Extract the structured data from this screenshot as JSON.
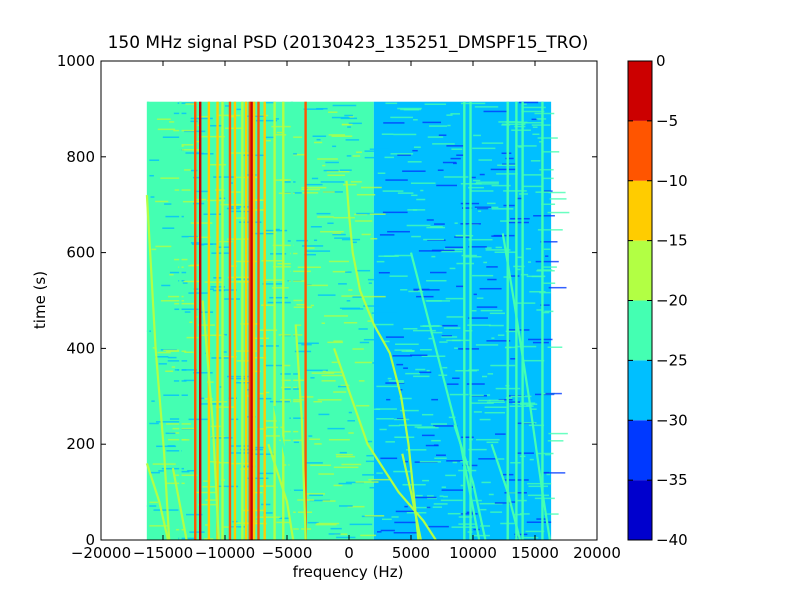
{
  "chart_data": {
    "type": "heatmap",
    "title": "150 MHz signal PSD (20130423_135251_DMSPF15_TRO)",
    "xlabel": "frequency (Hz)",
    "ylabel": "time (s)",
    "xlim": [
      -20000,
      20000
    ],
    "ylim": [
      0,
      1000
    ],
    "x_ticks": [
      -20000,
      -15000,
      -10000,
      -5000,
      0,
      5000,
      10000,
      15000,
      20000
    ],
    "x_tick_labels": [
      "−20000",
      "−15000",
      "−10000",
      "−5000",
      "0",
      "5000",
      "10000",
      "15000",
      "20000"
    ],
    "y_ticks": [
      0,
      200,
      400,
      600,
      800,
      1000
    ],
    "y_tick_labels": [
      "0",
      "200",
      "400",
      "600",
      "800",
      "1000"
    ],
    "data_extent": {
      "freq": [
        -16300,
        16300
      ],
      "time": [
        0,
        915
      ]
    },
    "background_level_low_freq": -22.5,
    "background_level_high_freq": -27.5,
    "colorbar": {
      "levels": [
        -40,
        -35,
        -30,
        -25,
        -20,
        -15,
        -10,
        -5,
        0
      ],
      "tick_labels": [
        "−40",
        "−35",
        "−30",
        "−25",
        "−20",
        "−15",
        "−10",
        "−5",
        "0"
      ],
      "colors": [
        "#0000cd",
        "#0039ff",
        "#00bfff",
        "#44ffb2",
        "#b2ff44",
        "#ffcc00",
        "#ff5500",
        "#cc0000"
      ]
    },
    "vertical_lines": [
      {
        "freq": -16200,
        "level": -22.5
      },
      {
        "freq": -13600,
        "level": -22.5
      },
      {
        "freq": -12400,
        "level": -7.5
      },
      {
        "freq": -12000,
        "level": -2.5
      },
      {
        "freq": -11300,
        "level": -12.5
      },
      {
        "freq": -10600,
        "level": -12.5
      },
      {
        "freq": -10200,
        "level": -17.5
      },
      {
        "freq": -9600,
        "level": -7.5
      },
      {
        "freq": -9200,
        "level": -12.5
      },
      {
        "freq": -8600,
        "level": -17.5
      },
      {
        "freq": -8300,
        "level": -12.5
      },
      {
        "freq": -8000,
        "level": -7.5
      },
      {
        "freq": -7850,
        "level": -2.5
      },
      {
        "freq": -7650,
        "level": -12.5
      },
      {
        "freq": -7300,
        "level": -7.5
      },
      {
        "freq": -6800,
        "level": -12.5
      },
      {
        "freq": -6000,
        "level": -17.5
      },
      {
        "freq": -5300,
        "level": -17.5
      },
      {
        "freq": -4600,
        "level": -22.5
      },
      {
        "freq": -3500,
        "level": -7.5
      },
      {
        "freq": 9300,
        "level": -22.5
      },
      {
        "freq": 9800,
        "level": -22.5
      },
      {
        "freq": 12800,
        "level": -22.5
      },
      {
        "freq": 13500,
        "level": -22.5
      },
      {
        "freq": 14000,
        "level": -22.5
      },
      {
        "freq": 15600,
        "level": -22.5
      }
    ],
    "drift_tracks": [
      {
        "points": [
          [
            -200,
            750
          ],
          [
            0,
            680
          ],
          [
            300,
            600
          ],
          [
            900,
            520
          ],
          [
            2000,
            450
          ],
          [
            3300,
            390
          ],
          [
            4200,
            300
          ],
          [
            4800,
            200
          ],
          [
            5200,
            100
          ],
          [
            5600,
            0
          ]
        ],
        "level": -17.5
      },
      {
        "points": [
          [
            -1200,
            400
          ],
          [
            1500,
            200
          ],
          [
            4000,
            100
          ],
          [
            6000,
            40
          ],
          [
            7000,
            0
          ]
        ],
        "level": -17.5
      },
      {
        "points": [
          [
            4300,
            180
          ],
          [
            5000,
            100
          ],
          [
            5800,
            0
          ]
        ],
        "level": -17.5
      },
      {
        "points": [
          [
            5000,
            600
          ],
          [
            6500,
            450
          ],
          [
            9000,
            200
          ],
          [
            10500,
            0
          ]
        ],
        "level": -22.5
      },
      {
        "points": [
          [
            8500,
            240
          ],
          [
            10000,
            120
          ],
          [
            11000,
            0
          ]
        ],
        "level": -22.5
      },
      {
        "points": [
          [
            11500,
            200
          ],
          [
            12800,
            100
          ],
          [
            13800,
            0
          ]
        ],
        "level": -22.5
      },
      {
        "points": [
          [
            12400,
            640
          ],
          [
            13300,
            500
          ],
          [
            14500,
            300
          ],
          [
            15600,
            100
          ],
          [
            16200,
            0
          ]
        ],
        "level": -22.5
      },
      {
        "points": [
          [
            -16300,
            720
          ],
          [
            -15600,
            400
          ],
          [
            -14900,
            180
          ],
          [
            -14500,
            0
          ]
        ],
        "level": -17.5
      },
      {
        "points": [
          [
            -16300,
            160
          ],
          [
            -15300,
            80
          ],
          [
            -14600,
            0
          ]
        ],
        "level": -17.5
      },
      {
        "points": [
          [
            -14200,
            150
          ],
          [
            -13100,
            0
          ]
        ],
        "level": -17.5
      },
      {
        "points": [
          [
            -11800,
            500
          ],
          [
            -11000,
            250
          ],
          [
            -10500,
            0
          ]
        ],
        "level": -17.5
      },
      {
        "points": [
          [
            -6500,
            200
          ],
          [
            -5000,
            80
          ],
          [
            -4500,
            0
          ]
        ],
        "level": -17.5
      },
      {
        "points": [
          [
            -6000,
            280
          ],
          [
            -4500,
            100
          ],
          [
            -3800,
            0
          ]
        ],
        "level": -22.5
      },
      {
        "points": [
          [
            -4300,
            450
          ],
          [
            -3800,
            250
          ],
          [
            -3500,
            0
          ]
        ],
        "level": -17.5
      }
    ]
  }
}
